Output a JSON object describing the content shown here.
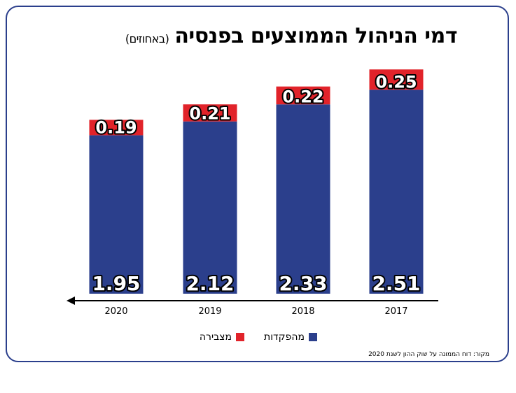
{
  "title": "דמי הניהול הממוצעים בפנסיה",
  "unit": "(באחוזים)",
  "source": "מקור: דוח הממונה על שוק ההון לשנת 2020",
  "colors": {
    "deposits": "#2b3f8c",
    "accumulation": "#e1232a",
    "frame": "#2b3f8c"
  },
  "chart_data": {
    "type": "bar",
    "stacked": true,
    "categories": [
      "2020",
      "2019",
      "2018",
      "2017"
    ],
    "series": [
      {
        "name": "מהפקדות",
        "values": [
          1.95,
          2.12,
          2.33,
          2.51
        ]
      },
      {
        "name": "מצבירה",
        "values": [
          0.19,
          0.21,
          0.22,
          0.25
        ]
      }
    ],
    "ylim": [
      0,
      2.8
    ],
    "axis_direction": "right-to-left",
    "legend_placement": "bottom"
  }
}
